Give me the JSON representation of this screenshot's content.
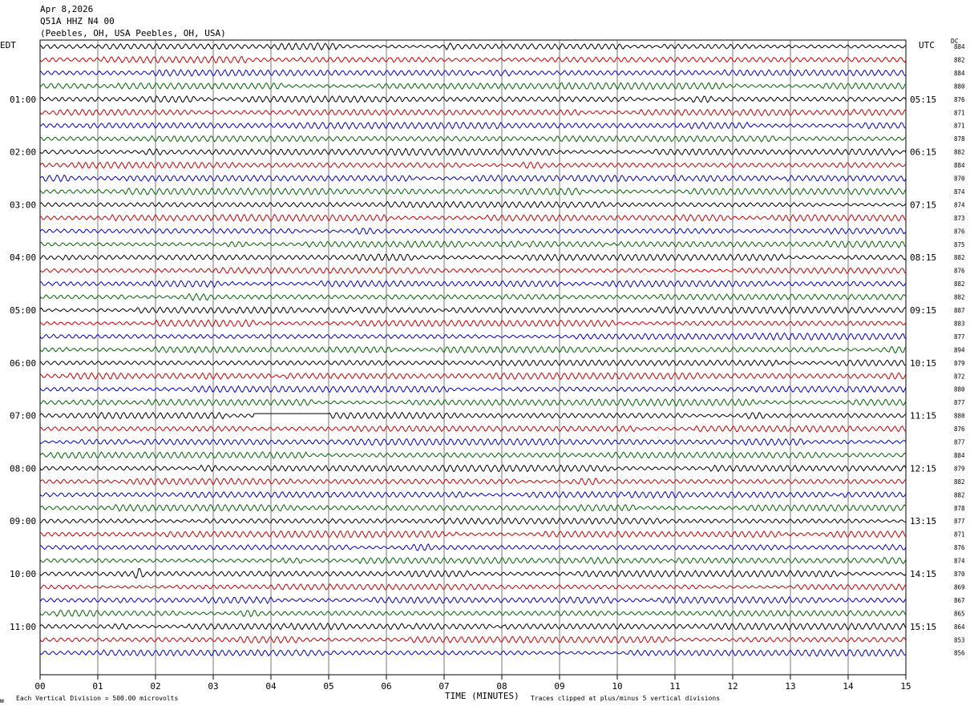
{
  "header": {
    "date": "Apr 8,2026",
    "station": "Q51A HHZ N4 00",
    "location": "(Peebles, OH, USA Peebles, OH, USA)"
  },
  "left_timezone": "EDT",
  "right_timezone": "UTC",
  "dc_header": "DC",
  "footer": {
    "scale_note": "Each Vertical Division =  500.00 microvolts",
    "clip_note": "Traces clipped at plus/minus 5 vertical divisions",
    "corner_mark": "ᴍ"
  },
  "chart_data": {
    "type": "line",
    "xlabel": "TIME (MINUTES)",
    "x_ticks": [
      "00",
      "01",
      "02",
      "03",
      "04",
      "05",
      "06",
      "07",
      "08",
      "09",
      "10",
      "11",
      "12",
      "13",
      "14",
      "15"
    ],
    "xlim": [
      0,
      15
    ],
    "trace_colors": [
      "#000000",
      "#cc0000",
      "#0000cc",
      "#006600"
    ],
    "left_hour_labels": [
      "01:00",
      "02:00",
      "03:00",
      "04:00",
      "05:00",
      "06:00",
      "07:00",
      "08:00",
      "09:00",
      "10:00",
      "11:00"
    ],
    "right_hour_labels": [
      "05:15",
      "06:15",
      "07:15",
      "08:15",
      "09:15",
      "10:15",
      "11:15",
      "12:15",
      "13:15",
      "14:15",
      "15:15"
    ],
    "dc_offsets": [
      884,
      882,
      884,
      880,
      876,
      871,
      871,
      878,
      882,
      884,
      870,
      874,
      874,
      873,
      876,
      875,
      882,
      876,
      882,
      882,
      887,
      883,
      877,
      894,
      879,
      872,
      880,
      877,
      880,
      876,
      877,
      884,
      879,
      882,
      882,
      878,
      877,
      871,
      876,
      874,
      870,
      869,
      867,
      865,
      864,
      853,
      856
    ],
    "events": [
      {
        "trace": 40,
        "minute": 1.7,
        "type": "burst"
      },
      {
        "trace": 28,
        "minute_start": 3.7,
        "minute_end": 5.0,
        "type": "flat_gap"
      }
    ]
  }
}
